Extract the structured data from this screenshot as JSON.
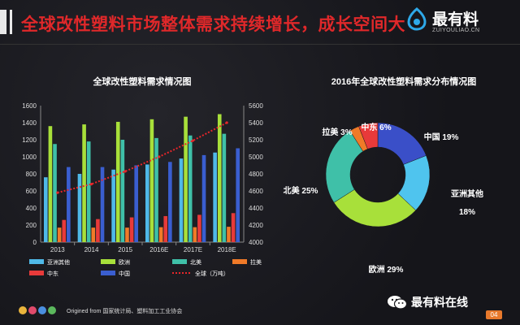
{
  "header": {
    "title": "全球改性塑料市场整体需求持续增长，成长空间大",
    "logo_name": "最有料",
    "logo_sub": "ZUIYOULIAO.CN"
  },
  "footer": {
    "source": "Origined from 国家统计局、塑料加工工业协会",
    "wechat_name": "最有料在线",
    "page_number": "04",
    "dot_colors": [
      "#e9b43c",
      "#e04a6b",
      "#4a8fe0",
      "#5bb85d"
    ]
  },
  "chart_data": [
    {
      "type": "bar",
      "title": "全球改性塑料需求情况图",
      "categories": [
        "2013",
        "2014",
        "2015",
        "2016E",
        "2017E",
        "2018E"
      ],
      "y_left_ticks": [
        "0",
        "200",
        "400",
        "600",
        "800",
        "1000",
        "1200",
        "1400",
        "1600"
      ],
      "y_right_ticks": [
        "4000",
        "4200",
        "4400",
        "4600",
        "4800",
        "5000",
        "5200",
        "5400",
        "5600"
      ],
      "ylim_left": [
        0,
        1600
      ],
      "ylim_right": [
        4000,
        5600
      ],
      "series": [
        {
          "name": "亚洲其他",
          "color": "#4fb9e8",
          "axis": "left",
          "values": [
            760,
            800,
            850,
            910,
            980,
            1050
          ]
        },
        {
          "name": "欧洲",
          "color": "#a8e03a",
          "axis": "left",
          "values": [
            1360,
            1380,
            1410,
            1440,
            1470,
            1500
          ]
        },
        {
          "name": "北美",
          "color": "#3fc0a8",
          "axis": "left",
          "values": [
            1150,
            1180,
            1200,
            1220,
            1250,
            1270
          ]
        },
        {
          "name": "拉美",
          "color": "#f07a28",
          "axis": "left",
          "values": [
            170,
            170,
            170,
            175,
            175,
            180
          ]
        },
        {
          "name": "中东",
          "color": "#e83a3a",
          "axis": "left",
          "values": [
            260,
            270,
            290,
            305,
            320,
            340
          ]
        },
        {
          "name": "中国",
          "color": "#3a5ed0",
          "axis": "left",
          "values": [
            880,
            880,
            900,
            940,
            1020,
            1100
          ]
        },
        {
          "name": "全球（万吨）",
          "color": "#e8262a",
          "axis": "right",
          "type": "line",
          "values": [
            4580,
            4680,
            4830,
            5000,
            5190,
            5400
          ]
        }
      ],
      "legend_position": "bottom",
      "grid": false
    },
    {
      "type": "pie",
      "title": "2016年全球改性塑料需求分布情况图",
      "slices": [
        {
          "label": "中国 19%",
          "value": 19,
          "color": "#3a4fc8"
        },
        {
          "label": "亚洲其他",
          "label2": "18%",
          "value": 18,
          "color": "#4fc4ee"
        },
        {
          "label": "欧洲 29%",
          "value": 29,
          "color": "#a8e03a"
        },
        {
          "label": "北美 25%",
          "value": 25,
          "color": "#3fc0a8"
        },
        {
          "label": "拉美 3%",
          "value": 3,
          "color": "#f07a28"
        },
        {
          "label": "中东 6%",
          "value": 6,
          "color": "#e83a3a"
        }
      ],
      "donut": true
    }
  ]
}
